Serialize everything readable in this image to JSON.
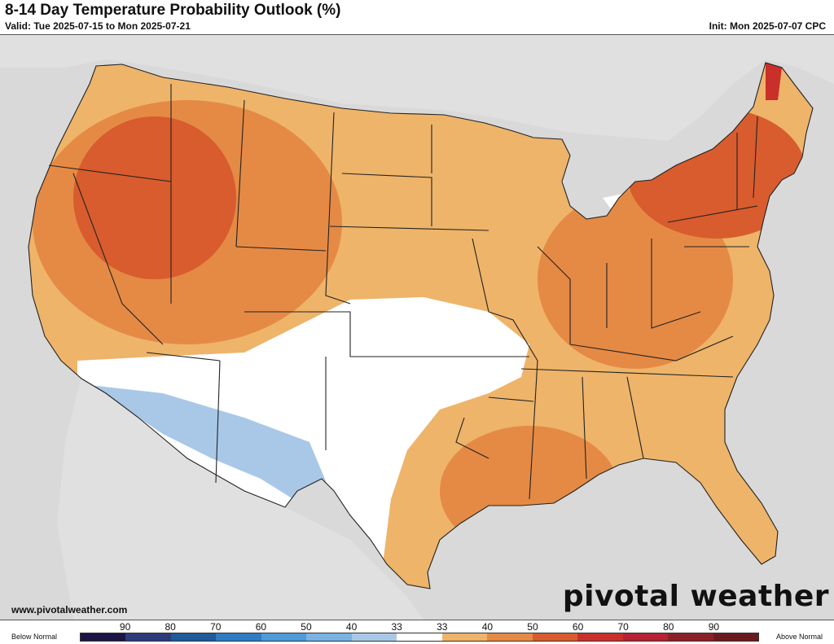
{
  "header": {
    "title": "8-14 Day Temperature Probability Outlook (%)",
    "valid": "Valid: Tue 2025-07-15 to Mon 2025-07-21",
    "init": "Init: Mon 2025-07-07 CPC"
  },
  "footer": {
    "source": "www.pivotalweather.com",
    "logo": "pivotal weather"
  },
  "legend": {
    "below_label": "Below Normal",
    "above_label": "Above Normal",
    "ticks": [
      "90",
      "80",
      "70",
      "60",
      "50",
      "40",
      "33",
      "33",
      "40",
      "50",
      "60",
      "70",
      "80",
      "90"
    ],
    "colors": [
      "#1c1445",
      "#2c3b7a",
      "#1f5a9a",
      "#2e7cc4",
      "#4f9ad8",
      "#7ab2e2",
      "#a9c8e8",
      "#ffffff",
      "#eeb46a",
      "#e58a45",
      "#d85c2e",
      "#c9302a",
      "#b52232",
      "#8c2028",
      "#6a1a1e"
    ]
  },
  "map": {
    "categories": [
      {
        "region": "Pacific Northwest / Great Basin",
        "category": "Above Normal",
        "probability": "60-70"
      },
      {
        "region": "Northern Plains / Midwest",
        "category": "Above Normal",
        "probability": "40-50"
      },
      {
        "region": "Ohio Valley",
        "category": "Above Normal",
        "probability": "50-60"
      },
      {
        "region": "Northeast / New England",
        "category": "Above Normal",
        "probability": "60-70"
      },
      {
        "region": "Southeast",
        "category": "Above Normal",
        "probability": "40-50"
      },
      {
        "region": "Gulf Coast",
        "category": "Above Normal",
        "probability": "50-60"
      },
      {
        "region": "Southern Plains",
        "category": "Near Normal",
        "probability": "33"
      },
      {
        "region": "Desert Southwest",
        "category": "Below Normal",
        "probability": "33-40"
      }
    ]
  }
}
